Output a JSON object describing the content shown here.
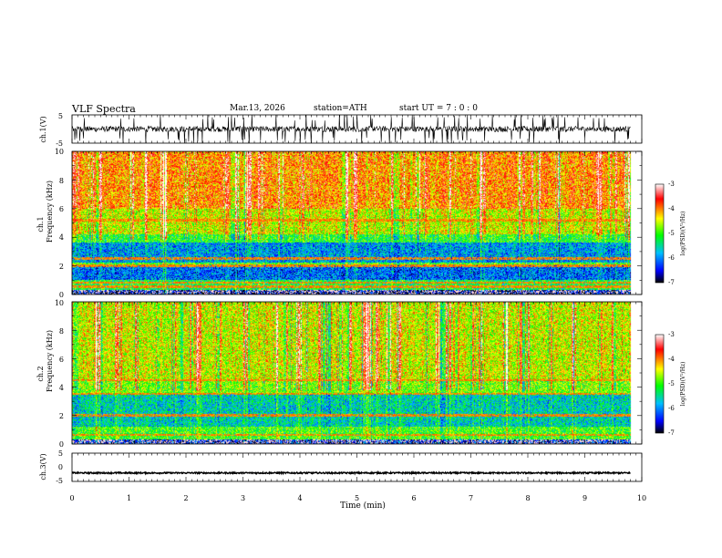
{
  "header": {
    "title": "VLF  Spectra",
    "date": "Mar.13, 2026",
    "station": "station=ATH",
    "start_ut": "start  UT  =    7  : 0  : 0"
  },
  "chart_data": [
    {
      "type": "line",
      "panel": "ch1-waveform",
      "ylabel": "ch.1(V)",
      "ylim": [
        -5,
        5
      ],
      "y_ticks": [
        "5",
        "-5"
      ],
      "xlim": [
        0,
        10
      ],
      "x_end": 9.8,
      "baseline": 0,
      "noise_amplitude": 1,
      "spike_count": 130
    },
    {
      "type": "heatmap",
      "panel": "ch1-spectrogram",
      "ylabel_top": "ch.1",
      "ylabel": "Frequency  (kHz)",
      "ylim": [
        0,
        10
      ],
      "y_ticks": [
        "0",
        "2",
        "4",
        "6",
        "8",
        "10"
      ],
      "xlim": [
        0,
        10
      ],
      "x_end": 9.8,
      "colorbar": {
        "label": "log(PSD)(V²/Hz)",
        "range": [
          -7,
          -3
        ],
        "ticks": [
          "-3",
          "-4",
          "-5",
          "-6",
          "-7"
        ],
        "colors": [
          "#000000",
          "#0000ff",
          "#00bfff",
          "#00ff00",
          "#ffff00",
          "#ff0000",
          "#ffffff"
        ]
      },
      "band_profile": [
        {
          "f": [
            0,
            0.3
          ],
          "level": -6.6
        },
        {
          "f": [
            0.3,
            1.0
          ],
          "level": -5.2
        },
        {
          "f": [
            1.0,
            2.0
          ],
          "level": -6.1
        },
        {
          "f": [
            2.0,
            2.2
          ],
          "level": -5.0
        },
        {
          "f": [
            2.2,
            3.6
          ],
          "level": -5.9
        },
        {
          "f": [
            3.6,
            4.2
          ],
          "level": -5.1
        },
        {
          "f": [
            4.2,
            6.0
          ],
          "level": -4.5
        },
        {
          "f": [
            6.0,
            10.0
          ],
          "level": -4.0
        }
      ],
      "tone_lines_khz": [
        0.5,
        0.8,
        2.0,
        2.5,
        5.2
      ]
    },
    {
      "type": "heatmap",
      "panel": "ch2-spectrogram",
      "ylabel_top": "ch.2",
      "ylabel": "Frequency  (kHz)",
      "ylim": [
        0,
        10
      ],
      "y_ticks": [
        "0",
        "2",
        "4",
        "6",
        "8",
        "10"
      ],
      "xlim": [
        0,
        10
      ],
      "x_end": 9.8,
      "colorbar": {
        "label": "log(PSD)(V²/Hz)",
        "range": [
          -7,
          -3
        ],
        "ticks": [
          "-3",
          "-4",
          "-5",
          "-6",
          "-7"
        ],
        "colors": [
          "#000000",
          "#0000ff",
          "#00bfff",
          "#00ff00",
          "#ffff00",
          "#ff0000",
          "#ffffff"
        ]
      },
      "band_profile": [
        {
          "f": [
            0,
            0.3
          ],
          "level": -6.4
        },
        {
          "f": [
            0.3,
            1.2
          ],
          "level": -5.0
        },
        {
          "f": [
            1.2,
            3.5
          ],
          "level": -5.6
        },
        {
          "f": [
            3.5,
            4.5
          ],
          "level": -4.8
        },
        {
          "f": [
            4.5,
            10.0
          ],
          "level": -4.5
        }
      ],
      "tone_lines_khz": [
        0.6,
        2.0,
        3.5,
        4.5
      ]
    },
    {
      "type": "line",
      "panel": "ch3-waveform",
      "ylabel": "ch.3(V)",
      "ylim": [
        -5,
        5
      ],
      "y_ticks": [
        "5",
        "0",
        "-5"
      ],
      "xlim": [
        0,
        10
      ],
      "x_end": 9.8,
      "baseline": -2,
      "noise_amplitude": 0.25,
      "xlabel": "Time  (min)",
      "x_ticks": [
        "0",
        "1",
        "2",
        "3",
        "4",
        "5",
        "6",
        "7",
        "8",
        "9",
        "10"
      ]
    }
  ]
}
